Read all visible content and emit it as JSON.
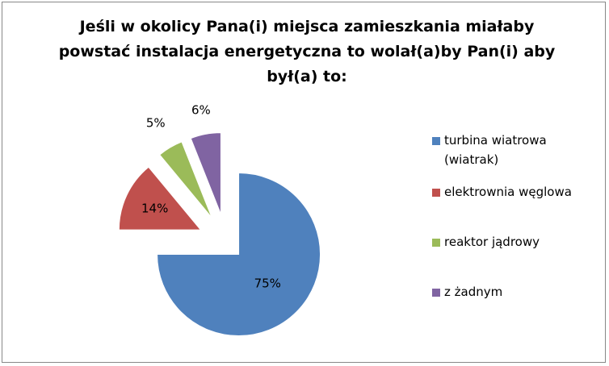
{
  "chart_data": {
    "type": "pie",
    "title": "Jeśli w okolicy Pana(i) miejsca zamieszkania miałaby powstać instalacja energetyczna to wolał(a)by Pan(i) aby był(a)  to:",
    "title_lines": [
      "Jeśli w okolicy Pana(i) miejsca zamieszkania miałaby",
      "powstać instalacja energetyczna to wolał(a)by Pan(i) aby",
      "był(a)  to:"
    ],
    "categories": [
      "turbina wiatrowa (wiatrak)",
      "elektrownia węglowa",
      "reaktor jądrowy",
      "z żadnym"
    ],
    "values": [
      75,
      14,
      5,
      6
    ],
    "data_labels": [
      "75%",
      "14%",
      "5%",
      "6%"
    ],
    "colors": [
      "#4f81bd",
      "#c0504d",
      "#9bbb59",
      "#8064a2"
    ],
    "exploded": true,
    "legend_position": "right"
  },
  "legend": {
    "items": [
      {
        "lines": [
          "turbina wiatrowa",
          "(wiatrak)"
        ],
        "color": "#4f81bd"
      },
      {
        "lines": [
          "elektrownia węglowa"
        ],
        "color": "#c0504d"
      },
      {
        "lines": [
          "reaktor jądrowy"
        ],
        "color": "#9bbb59"
      },
      {
        "lines": [
          "z żadnym"
        ],
        "color": "#8064a2"
      }
    ]
  }
}
